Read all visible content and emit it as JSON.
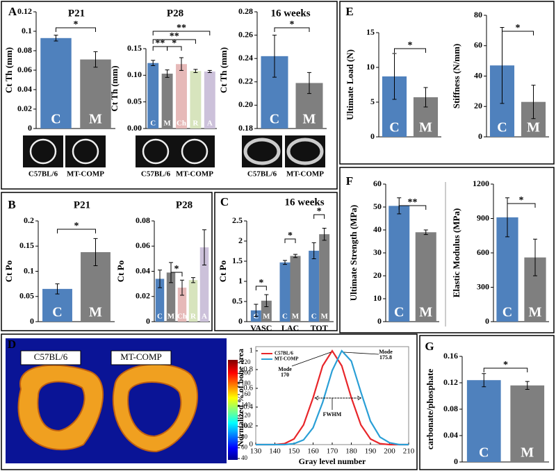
{
  "panel_labels": [
    "A",
    "E",
    "B",
    "C",
    "F",
    "D",
    "G"
  ],
  "micrographs": {
    "labels": [
      "C57BL/6",
      "MT-COMP",
      "C57BL/6",
      "MT-COMP",
      "C57BL/6",
      "MT-COMP"
    ]
  },
  "heatmap": {
    "labels": [
      "C57BL/6",
      "MT-COMP"
    ],
    "colorbar_ticks": [
      40,
      60,
      80,
      100,
      120,
      140,
      160,
      180,
      200,
      220
    ]
  },
  "chart_data": [
    {
      "type": "bar",
      "title": "P21",
      "ylabel": "Ct Th (mm)",
      "categories": [
        "C",
        "M"
      ],
      "values": [
        0.093,
        0.071
      ],
      "errors": [
        0.003,
        0.008
      ],
      "colors": [
        "#4f81bd",
        "#7f7f7f"
      ],
      "ylim": [
        0,
        0.12
      ],
      "yticks": [
        0,
        0.02,
        0.04,
        0.06,
        0.08,
        0.1,
        0.12
      ],
      "annotations": [
        "*"
      ]
    },
    {
      "type": "bar",
      "title": "P28",
      "ylabel": "Ct Th (mm)",
      "categories": [
        "C",
        "M",
        "Ch",
        "R",
        "A"
      ],
      "values": [
        0.123,
        0.103,
        0.121,
        0.108,
        0.107
      ],
      "errors": [
        0.005,
        0.007,
        0.012,
        0.003,
        0.002
      ],
      "colors": [
        "#4f81bd",
        "#7f7f7f",
        "#e6b9b8",
        "#d7e4bd",
        "#ccc1da"
      ],
      "ylim": [
        0,
        0.15
      ],
      "yticks": [
        {
          "value": 0,
          "label": "0.00"
        },
        {
          "value": 0.05,
          "label": "0.05"
        },
        {
          "value": 0.1,
          "label": "0.10"
        },
        {
          "value": 0.15,
          "label": "0.15"
        }
      ],
      "annotations": [
        "**",
        "*",
        "**",
        "**"
      ]
    },
    {
      "type": "bar",
      "title": "16 weeks",
      "ylabel": "Ct Th (mm)",
      "categories": [
        "C",
        "M"
      ],
      "values": [
        0.242,
        0.219
      ],
      "errors": [
        0.018,
        0.009
      ],
      "colors": [
        "#4f81bd",
        "#7f7f7f"
      ],
      "ylim": [
        0.18,
        0.28
      ],
      "yticks": [
        0.18,
        {
          "value": 0.2,
          "label": "0.20"
        },
        0.22,
        0.24,
        0.26,
        0.28
      ],
      "annotations": [
        "*"
      ]
    },
    {
      "type": "bar",
      "title": "P21",
      "ylabel": "Ct Po",
      "categories": [
        "C",
        "M"
      ],
      "values": [
        0.065,
        0.138
      ],
      "errors": [
        0.01,
        0.027
      ],
      "colors": [
        "#4f81bd",
        "#7f7f7f"
      ],
      "ylim": [
        0,
        0.2
      ],
      "yticks": [
        0,
        0.05,
        0.1,
        0.15,
        0.2
      ],
      "annotations": [
        "*"
      ]
    },
    {
      "type": "bar",
      "title": "P28",
      "ylabel": "Ct Po",
      "categories": [
        "C",
        "M",
        "Ch",
        "R",
        "A"
      ],
      "values": [
        0.034,
        0.039,
        0.027,
        0.033,
        0.059
      ],
      "errors": [
        0.007,
        0.008,
        0.006,
        0.002,
        0.014
      ],
      "colors": [
        "#4f81bd",
        "#7f7f7f",
        "#e6b9b8",
        "#d7e4bd",
        "#ccc1da"
      ],
      "ylim": [
        0,
        0.08
      ],
      "yticks": [
        0,
        0.02,
        0.04,
        0.06,
        0.08
      ],
      "annotations": [
        "*"
      ]
    },
    {
      "type": "bar",
      "title": "16 weeks",
      "ylabel": "Ct Po",
      "categories": [
        "VASC",
        "LAC",
        "TOT"
      ],
      "series": [
        {
          "name": "C",
          "color": "#4f81bd",
          "values": [
            0.28,
            1.47,
            1.76
          ],
          "errors": [
            0.15,
            0.05,
            0.2
          ]
        },
        {
          "name": "M",
          "color": "#7f7f7f",
          "values": [
            0.52,
            1.63,
            2.17
          ],
          "errors": [
            0.15,
            0.04,
            0.15
          ]
        }
      ],
      "ylim": [
        0,
        2.5
      ],
      "yticks": [
        0,
        0.5,
        1,
        1.5,
        2,
        2.5
      ],
      "annotations": [
        "*",
        "*",
        "*"
      ]
    },
    {
      "type": "line",
      "xlabel": "Gray level number",
      "ylabel": "Normalized % of bone area",
      "x": [
        130,
        135,
        140,
        145,
        150,
        155,
        160,
        165,
        170,
        175,
        180,
        185,
        190,
        195,
        200,
        205,
        210
      ],
      "series": [
        {
          "name": "C57BL/6",
          "color": "#e8262a",
          "values": [
            0,
            0,
            0,
            0.01,
            0.06,
            0.21,
            0.5,
            0.84,
            1,
            0.84,
            0.5,
            0.21,
            0.06,
            0.01,
            0,
            0,
            0
          ]
        },
        {
          "name": "MT-COMP",
          "color": "#2a9fd6",
          "values": [
            0,
            0,
            0,
            0,
            0.01,
            0.05,
            0.18,
            0.45,
            0.79,
            1,
            0.89,
            0.56,
            0.25,
            0.08,
            0.02,
            0,
            0
          ]
        }
      ],
      "xlim": [
        130,
        210
      ],
      "xticks": [
        130,
        140,
        150,
        160,
        170,
        180,
        190,
        200,
        210
      ],
      "ylim": [
        0,
        1
      ],
      "yticks": [
        0,
        0.2,
        0.4,
        0.6,
        0.8,
        1
      ],
      "annotations": [
        "Mode",
        "170",
        "Mode",
        "175.8",
        "FWHM"
      ]
    },
    {
      "type": "bar",
      "ylabel": "Ultimate Load (N)",
      "categories": [
        "C",
        "M"
      ],
      "values": [
        8.7,
        5.7
      ],
      "errors": [
        3.3,
        1.4
      ],
      "colors": [
        "#4f81bd",
        "#7f7f7f"
      ],
      "ylim": [
        0,
        15
      ],
      "yticks": [
        0,
        5,
        10,
        15
      ],
      "annotations": [
        "*"
      ]
    },
    {
      "type": "bar",
      "ylabel": "Stiffness (N/mm)",
      "categories": [
        "C",
        "M"
      ],
      "values": [
        47,
        23
      ],
      "errors": [
        25,
        11
      ],
      "colors": [
        "#4f81bd",
        "#7f7f7f"
      ],
      "ylim": [
        0,
        80
      ],
      "yticks": [
        0,
        20,
        40,
        60,
        80
      ],
      "annotations": [
        "*"
      ]
    },
    {
      "type": "bar",
      "ylabel": "Ultimate Strength (MPa)",
      "categories": [
        "C",
        "M"
      ],
      "values": [
        50.5,
        39
      ],
      "errors": [
        3.5,
        1
      ],
      "colors": [
        "#4f81bd",
        "#7f7f7f"
      ],
      "ylim": [
        0,
        60
      ],
      "yticks": [
        0,
        10,
        20,
        30,
        40,
        50,
        60
      ],
      "annotations": [
        "**"
      ]
    },
    {
      "type": "bar",
      "ylabel": "Elastic Modulus (MPa)",
      "categories": [
        "C",
        "M"
      ],
      "values": [
        910,
        560
      ],
      "errors": [
        170,
        160
      ],
      "colors": [
        "#4f81bd",
        "#7f7f7f"
      ],
      "ylim": [
        0,
        1200
      ],
      "yticks": [
        0,
        300,
        600,
        900,
        1200
      ],
      "annotations": [
        "*"
      ]
    },
    {
      "type": "bar",
      "ylabel": "carbonate/phosphate",
      "categories": [
        "C",
        "M"
      ],
      "values": [
        0.124,
        0.116
      ],
      "errors": [
        0.01,
        0.006
      ],
      "colors": [
        "#4f81bd",
        "#7f7f7f"
      ],
      "ylim": [
        0,
        0.16
      ],
      "yticks": [
        0,
        0.04,
        0.08,
        0.12,
        0.16
      ],
      "annotations": [
        "*"
      ]
    }
  ]
}
